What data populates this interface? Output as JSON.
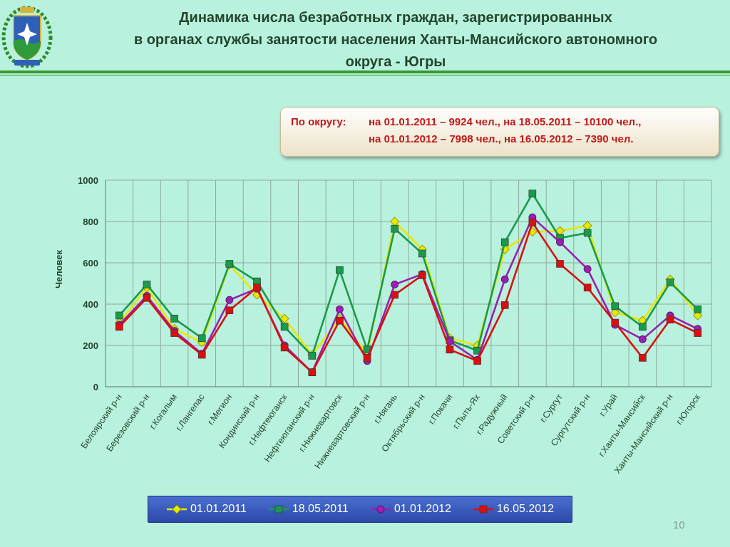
{
  "title": {
    "line1": "Динамика числа безработных граждан, зарегистрированных",
    "line2": "в органах службы занятости населения Ханты-Мансийского автономного",
    "line3": "округа - Югры"
  },
  "info_box": {
    "label": "По округу:",
    "line1": "на 01.01.2011 – 9924 чел., на  18.05.2011 – 10100 чел.,",
    "line2": "на 01.01.2012 – 7998 чел., на  16.05.2012 – 7390 чел."
  },
  "page_number": "10",
  "colors": {
    "s2011_01": "#e8e800",
    "s2011_05": "#1a9a4a",
    "s2012_01": "#9a20b0",
    "s2012_05": "#d81010",
    "grid": "#8fa89a",
    "axis_text": "#24452d"
  },
  "chart_data": {
    "type": "line",
    "ylabel": "Человек",
    "ylim": [
      0,
      1000
    ],
    "yticks": [
      0,
      200,
      400,
      600,
      800,
      1000
    ],
    "grid": true,
    "legend_position": "bottom",
    "categories": [
      "Белоярский р-н",
      "Березовский р-н",
      "г.Когалым",
      "г.Лангепас",
      "г.Мегион",
      "Кондинский р-н",
      "г.Нефтеюганск",
      "Нефтеюганский р-н",
      "г.Нижневартовск",
      "Нижневартовский р-н",
      "г.Нягань",
      "Октябрьский р-н",
      "г.Покачи",
      "г.Пыть-Ях",
      "г.Радужный",
      "Советский р-н",
      "г.Сургут",
      "Сургутский р-н",
      "г.Урай",
      "г.Ханты-Мансийск",
      "Ханты-Мансийский р-н",
      "г.Югорск"
    ],
    "series": [
      {
        "name": "01.01.2011",
        "color": "#e8e800",
        "marker": "diamond",
        "values": [
          310,
          480,
          280,
          215,
          590,
          445,
          330,
          155,
          330,
          160,
          800,
          665,
          235,
          200,
          665,
          750,
          755,
          780,
          360,
          320,
          520,
          345
        ]
      },
      {
        "name": "18.05.2011",
        "color": "#1a9a4a",
        "marker": "square",
        "values": [
          345,
          495,
          330,
          235,
          595,
          510,
          290,
          150,
          565,
          180,
          765,
          645,
          225,
          175,
          700,
          935,
          720,
          745,
          390,
          290,
          505,
          375
        ]
      },
      {
        "name": "01.01.2012",
        "color": "#9a20b0",
        "marker": "circle",
        "values": [
          300,
          440,
          270,
          160,
          420,
          475,
          200,
          70,
          375,
          125,
          495,
          545,
          220,
          130,
          520,
          820,
          700,
          570,
          300,
          230,
          345,
          280
        ]
      },
      {
        "name": "16.05.2012",
        "color": "#d81010",
        "marker": "square",
        "values": [
          290,
          430,
          260,
          155,
          370,
          480,
          190,
          70,
          320,
          140,
          445,
          540,
          180,
          125,
          395,
          795,
          595,
          480,
          310,
          140,
          325,
          260
        ]
      }
    ]
  }
}
